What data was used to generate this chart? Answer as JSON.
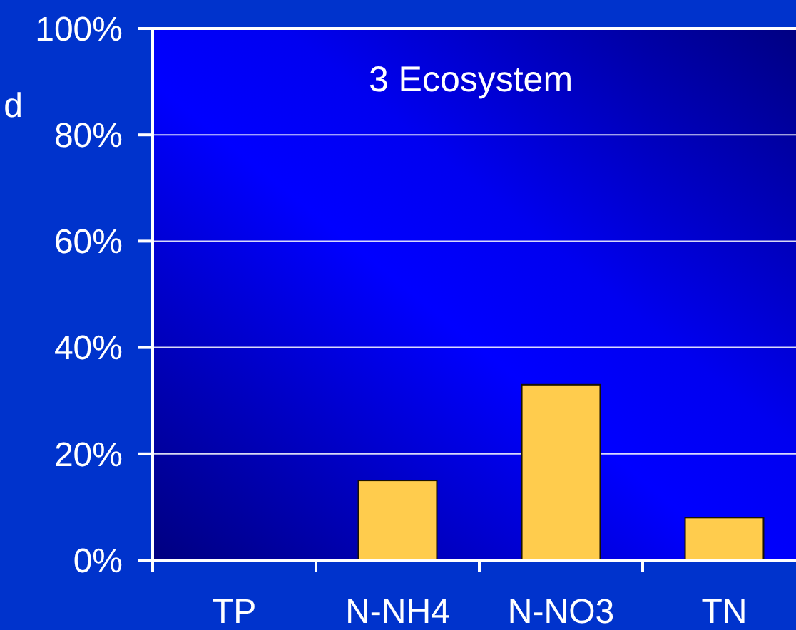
{
  "chart_data": {
    "type": "bar",
    "title": "3 Ecosystem",
    "annotations": [
      "d"
    ],
    "categories": [
      "TP",
      "N-NH4",
      "N-NO3",
      "TN"
    ],
    "values": [
      0,
      15,
      33,
      8
    ],
    "color": "#ffcc4d",
    "ylim": [
      0,
      100
    ],
    "yticks": [
      {
        "value": 0,
        "label": "0%"
      },
      {
        "value": 20,
        "label": "20%"
      },
      {
        "value": 40,
        "label": "40%"
      },
      {
        "value": 60,
        "label": "60%"
      },
      {
        "value": 80,
        "label": "80%"
      },
      {
        "value": 100,
        "label": "100%"
      }
    ],
    "grid": "y"
  }
}
